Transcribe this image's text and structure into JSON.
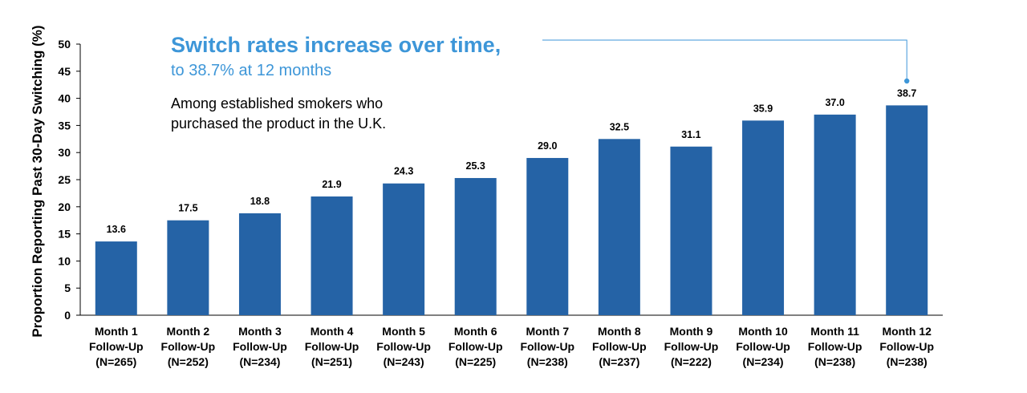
{
  "chart_data": {
    "type": "bar",
    "ylabel": "Proportion Reporting Past 30-Day Switching (%)",
    "xlabel": "",
    "ylim": [
      0,
      50
    ],
    "yticks": [
      0,
      5,
      10,
      15,
      20,
      25,
      30,
      35,
      40,
      45,
      50
    ],
    "grid": false,
    "categories": [
      [
        "Month 1",
        "Follow-Up",
        "(N=265)"
      ],
      [
        "Month 2",
        "Follow-Up",
        "(N=252)"
      ],
      [
        "Month 3",
        "Follow-Up",
        "(N=234)"
      ],
      [
        "Month 4",
        "Follow-Up",
        "(N=251)"
      ],
      [
        "Month 5",
        "Follow-Up",
        "(N=243)"
      ],
      [
        "Month 6",
        "Follow-Up",
        "(N=225)"
      ],
      [
        "Month 7",
        "Follow-Up",
        "(N=238)"
      ],
      [
        "Month 8",
        "Follow-Up",
        "(N=237)"
      ],
      [
        "Month 9",
        "Follow-Up",
        "(N=222)"
      ],
      [
        "Month 10",
        "Follow-Up",
        "(N=234)"
      ],
      [
        "Month 11",
        "Follow-Up",
        "(N=238)"
      ],
      [
        "Month 12",
        "Follow-Up",
        "(N=238)"
      ]
    ],
    "values": [
      13.6,
      17.5,
      18.8,
      21.9,
      24.3,
      25.3,
      29.0,
      32.5,
      31.1,
      35.9,
      37.0,
      38.7
    ],
    "data_labels": [
      "13.6",
      "17.5",
      "18.8",
      "21.9",
      "24.3",
      "25.3",
      "29.0",
      "32.5",
      "31.1",
      "35.9",
      "37.0",
      "38.7"
    ],
    "bar_color": "#2563a6",
    "annotation": {
      "headline": "Switch rates increase over time,",
      "subheadline": "to 38.7% at 12 months",
      "note_lines": [
        "Among established smokers who",
        "purchased the product in the U.K."
      ],
      "points_to": "Month 12 Follow-Up",
      "color": "#3d96d8"
    }
  }
}
